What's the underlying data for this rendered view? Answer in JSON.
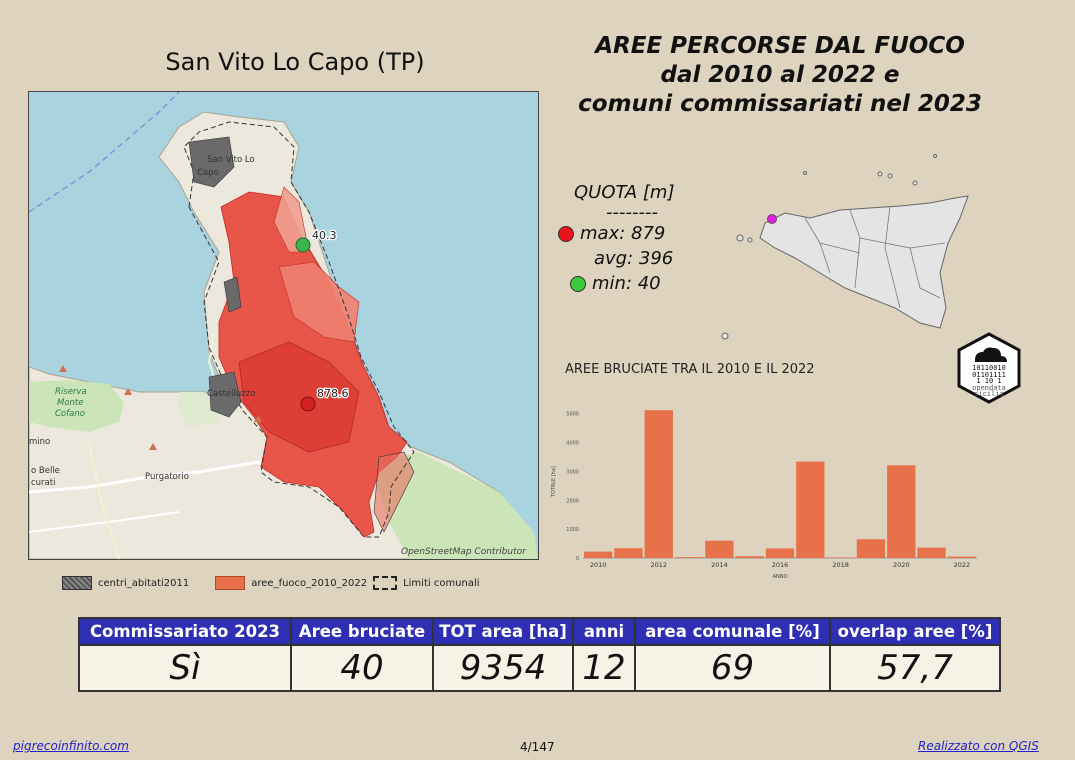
{
  "place_title": "San Vito Lo Capo (TP)",
  "main_title": [
    "AREE PERCORSE DAL FUOCO",
    "dal 2010 al 2022 e",
    "comuni commissariati nel 2023"
  ],
  "map": {
    "labels": {
      "town": [
        "San Vito Lo",
        "Capo"
      ],
      "castelluzzo": "Castelluzzo",
      "riserva": [
        "Riserva",
        "Monte",
        "Cofano"
      ],
      "purgatorio": "Purgatorio",
      "belle": [
        "o Belle",
        "curati"
      ],
      "mino": "mino",
      "attribution": "OpenStreetMap Contributor"
    },
    "points": [
      {
        "label": "40.3",
        "type": "min",
        "color": "#3cb44b"
      },
      {
        "label": "878.6",
        "type": "max",
        "color": "#d62020"
      }
    ]
  },
  "quota": {
    "title": "QUOTA [m]",
    "sep": "--------",
    "max": "max: 879",
    "avg": "avg: 396",
    "min": "min: 40",
    "max_color": "#e8141a",
    "min_color": "#3cc93c"
  },
  "chart_title": "AREE BRUCIATE TRA IL 2010 E IL 2022",
  "chart_data": {
    "type": "bar",
    "x": [
      2010,
      2011,
      2012,
      2013,
      2014,
      2015,
      2016,
      2017,
      2018,
      2019,
      2020,
      2021,
      2022
    ],
    "values": [
      220,
      340,
      5120,
      30,
      600,
      60,
      330,
      3340,
      20,
      650,
      3210,
      360,
      50
    ],
    "xticks": [
      "2010",
      "2012",
      "2014",
      "2016",
      "2018",
      "2020",
      "2022"
    ],
    "yticks": [
      "0",
      "1000",
      "2000",
      "3000",
      "4000",
      "5000"
    ],
    "ylim": [
      0,
      5300
    ],
    "xlabel": "ANNO",
    "ylabel": "TOTALE [ha]",
    "color": "#e8714a",
    "grid": false
  },
  "logo": {
    "lines": [
      "10110010",
      "01101111",
      "1  10 1"
    ],
    "text": [
      "opendata",
      "sicilia"
    ]
  },
  "legend": [
    {
      "label": "centri_abitati2011"
    },
    {
      "label": "aree_fuoco_2010_2022"
    },
    {
      "label": "Limiti comunali"
    }
  ],
  "stats": {
    "headers": [
      "Commissariato 2023",
      "Aree bruciate",
      "TOT area [ha]",
      "anni",
      "area comunale [%]",
      "overlap aree [%]"
    ],
    "values": [
      "Sì",
      "40",
      "9354",
      "12",
      "69",
      "57,7"
    ]
  },
  "footer": {
    "left": "pigrecoinfinito.com",
    "page": "4/147",
    "right": "Realizzato con QGIS"
  }
}
